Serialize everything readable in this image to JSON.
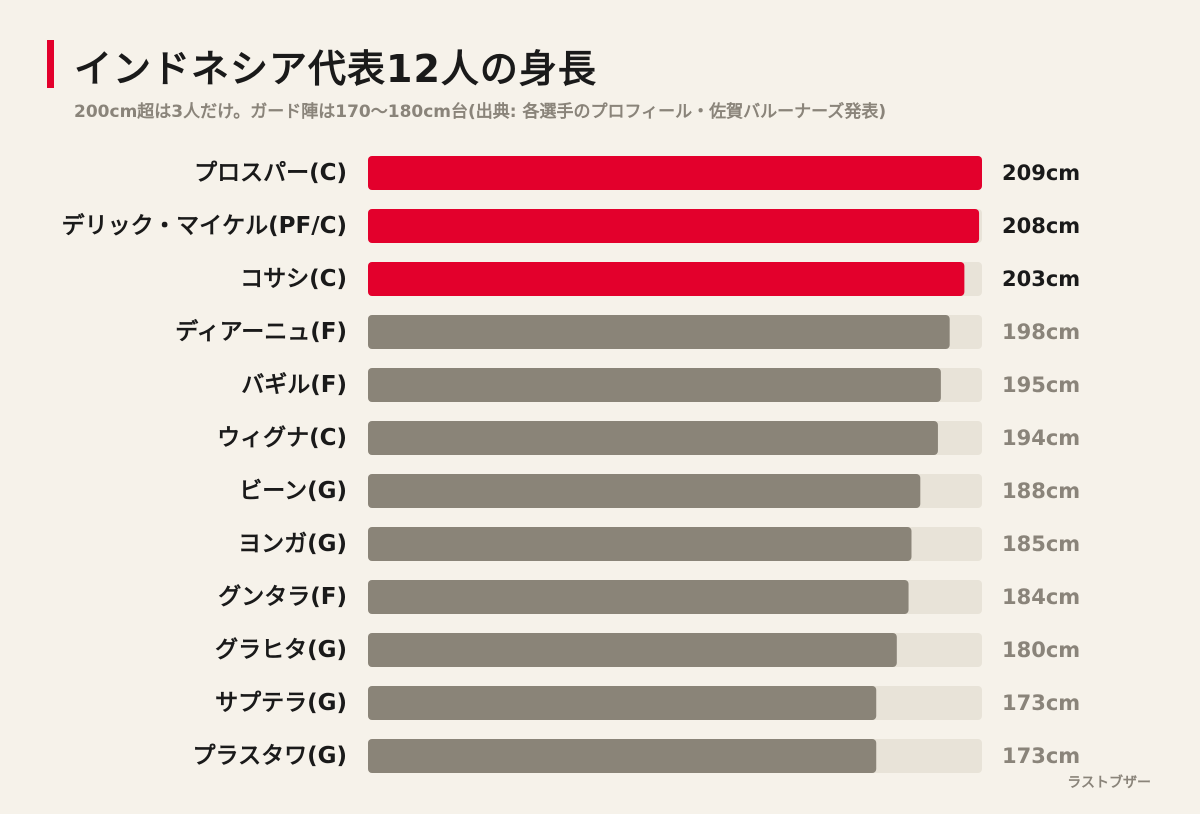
{
  "title": "インドネシア代表12人の身長",
  "subtitle": "200cm超は3人だけ。ガード陣は170〜180cm台(出典: 各選手のプロフィール・佐賀バルーナーズ発表)",
  "credit": "ラストブザー",
  "colors": {
    "highlight": "#e3002c",
    "normal": "#8a8478",
    "track": "#e8e3d8",
    "highlight_value_text": "#1a1a1a",
    "normal_value_text": "#8a847a"
  },
  "chart_data": {
    "type": "bar",
    "orientation": "horizontal",
    "categories": [
      "プロスパー(C)",
      "デリック・マイケル(PF/C)",
      "コサシ(C)",
      "ディアーニュ(F)",
      "バギル(F)",
      "ウィグナ(C)",
      "ビーン(G)",
      "ヨンガ(G)",
      "グンタラ(F)",
      "グラヒタ(G)",
      "サプテラ(G)",
      "プラスタワ(G)"
    ],
    "values": [
      209,
      208,
      203,
      198,
      195,
      194,
      188,
      185,
      184,
      180,
      173,
      173
    ],
    "value_labels": [
      "209cm",
      "208cm",
      "203cm",
      "198cm",
      "195cm",
      "194cm",
      "188cm",
      "185cm",
      "184cm",
      "180cm",
      "173cm",
      "173cm"
    ],
    "highlighted": [
      true,
      true,
      true,
      false,
      false,
      false,
      false,
      false,
      false,
      false,
      false,
      false
    ],
    "unit": "cm",
    "xlim": [
      0,
      209
    ],
    "grid": false,
    "legend": "none"
  }
}
